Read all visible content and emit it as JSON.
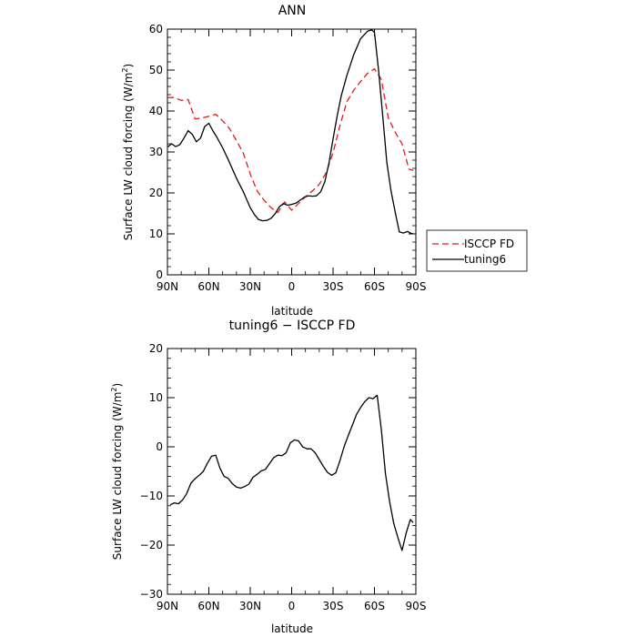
{
  "chart_data": [
    {
      "type": "line",
      "title": "ANN",
      "xlabel": "latitude",
      "ylabel": "Surface LW cloud forcing (W/m",
      "ylabel_sup": "2",
      "ylabel_end": ")",
      "x_tick_labels": [
        "90N",
        "60N",
        "30N",
        "0",
        "30S",
        "60S",
        "90S"
      ],
      "x_tick_values": [
        90,
        60,
        30,
        0,
        -30,
        -60,
        -90
      ],
      "xlim": [
        90,
        -90
      ],
      "ylim": [
        0,
        60
      ],
      "y_ticks": [
        0,
        10,
        20,
        30,
        40,
        50,
        60
      ],
      "grid": false,
      "legend_position": "right",
      "series": [
        {
          "name": "ISCCP FD",
          "color": "#e41a1c",
          "dash": "dashed",
          "x": [
            90,
            85,
            80,
            75,
            70,
            65,
            60,
            55,
            50,
            45,
            40,
            35,
            30,
            25,
            20,
            15,
            10,
            5,
            0,
            -5,
            -10,
            -15,
            -20,
            -25,
            -30,
            -35,
            -40,
            -45,
            -50,
            -55,
            -60,
            -65,
            -70,
            -75,
            -80,
            -85,
            -88
          ],
          "y": [
            43.3,
            43.3,
            42.6,
            42.8,
            38.1,
            38.3,
            38.7,
            39.2,
            37.6,
            35.7,
            32.8,
            29.7,
            24.6,
            20.5,
            18.2,
            16.4,
            15.2,
            17.8,
            15.8,
            17.4,
            19.1,
            20.5,
            22.1,
            24.9,
            29.8,
            36.5,
            42.3,
            45.1,
            47.2,
            49.2,
            50.3,
            47.7,
            38.3,
            34.8,
            32.0,
            25.8,
            25.5
          ]
        },
        {
          "name": "tuning6",
          "color": "#000000",
          "dash": "solid",
          "x": [
            90,
            87,
            84,
            81,
            78,
            75,
            72,
            69,
            66,
            63,
            60,
            57,
            54,
            50,
            45,
            40,
            35,
            30,
            27,
            24,
            21,
            18,
            15,
            12,
            9,
            6,
            3,
            0,
            -3,
            -6,
            -9,
            -12,
            -15,
            -18,
            -21,
            -24,
            -27,
            -30,
            -33,
            -36,
            -40,
            -45,
            -50,
            -55,
            -58,
            -60,
            -63,
            -66,
            -69,
            -72,
            -75,
            -78,
            -81,
            -84,
            -86,
            -88
          ],
          "y": [
            31.2,
            32.0,
            31.3,
            31.8,
            33.4,
            35.2,
            34.3,
            32.5,
            33.4,
            36.2,
            37.0,
            35.1,
            33.5,
            31.0,
            27.4,
            23.6,
            20.3,
            16.4,
            14.7,
            13.5,
            13.2,
            13.3,
            13.8,
            14.9,
            16.6,
            17.4,
            17.0,
            17.2,
            17.5,
            18.2,
            18.9,
            19.3,
            19.2,
            19.3,
            20.3,
            22.7,
            27.3,
            33.2,
            38.9,
            43.8,
            48.7,
            53.8,
            57.7,
            59.5,
            59.8,
            59.2,
            50.0,
            38.8,
            27.4,
            20.5,
            15.3,
            10.5,
            10.2,
            10.6,
            10.2,
            10.0
          ]
        }
      ]
    },
    {
      "type": "line",
      "title": "tuning6 − ISCCP FD",
      "xlabel": "latitude",
      "ylabel": "Surface LW cloud forcing (W/m",
      "ylabel_sup": "2",
      "ylabel_end": ")",
      "x_tick_labels": [
        "90N",
        "60N",
        "30N",
        "0",
        "30S",
        "60S",
        "90S"
      ],
      "x_tick_values": [
        90,
        60,
        30,
        0,
        -30,
        -60,
        -90
      ],
      "xlim": [
        90,
        -90
      ],
      "ylim": [
        -30,
        20
      ],
      "y_ticks": [
        -30,
        -20,
        -10,
        0,
        10,
        20
      ],
      "grid": false,
      "series": [
        {
          "name": "",
          "color": "#000000",
          "dash": "solid",
          "x": [
            88,
            85,
            82,
            79,
            76,
            73,
            70,
            67,
            64,
            61,
            58,
            55,
            52,
            49,
            46,
            43,
            40,
            37,
            34,
            31,
            28,
            25,
            22,
            19,
            16,
            13,
            10,
            7,
            4,
            1,
            -2,
            -5,
            -8,
            -11,
            -14,
            -17,
            -20,
            -23,
            -26,
            -29,
            -32,
            -35,
            -38,
            -41,
            -44,
            -47,
            -50,
            -53,
            -56,
            -59,
            -62,
            -65,
            -68,
            -71,
            -74,
            -77,
            -80,
            -83,
            -86,
            -88
          ],
          "y": [
            -11.8,
            -11.4,
            -11.6,
            -10.8,
            -9.5,
            -7.4,
            -6.5,
            -5.8,
            -5.0,
            -3.3,
            -1.9,
            -1.7,
            -4.3,
            -6.0,
            -6.4,
            -7.5,
            -8.2,
            -8.4,
            -8.1,
            -7.6,
            -6.2,
            -5.6,
            -4.9,
            -4.6,
            -3.4,
            -2.2,
            -1.7,
            -1.8,
            -1.2,
            0.8,
            1.4,
            1.2,
            0.0,
            -0.4,
            -0.4,
            -1.2,
            -2.6,
            -4.0,
            -5.2,
            -5.8,
            -5.3,
            -2.8,
            0.0,
            2.3,
            4.4,
            6.6,
            8.0,
            9.2,
            10.0,
            9.8,
            10.5,
            3.4,
            -5.5,
            -11.2,
            -15.6,
            -18.5,
            -21.1,
            -17.5,
            -14.8,
            -15.4
          ]
        }
      ]
    }
  ]
}
